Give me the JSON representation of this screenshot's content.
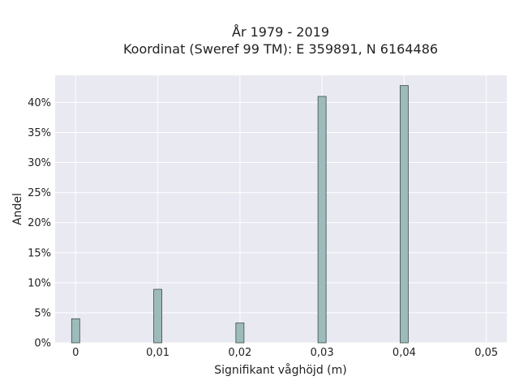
{
  "chart_data": {
    "type": "bar",
    "title_lines": [
      "År 1979 - 2019",
      "Koordinat (Sweref 99 TM): E 359891, N 6164486"
    ],
    "xlabel": "Signifikant våghöjd (m)",
    "ylabel": "Andel",
    "x": [
      0,
      0.01,
      0.02,
      0.03,
      0.04
    ],
    "values": [
      4.0,
      8.9,
      3.3,
      41.0,
      42.8
    ],
    "xlim": [
      -0.0025,
      0.0525
    ],
    "ylim": [
      0,
      44.5
    ],
    "xticks": [
      0,
      0.01,
      0.02,
      0.03,
      0.04,
      0.05
    ],
    "xtick_labels": [
      "0",
      "0,01",
      "0,02",
      "0,03",
      "0,04",
      "0,05"
    ],
    "yticks": [
      0,
      5,
      10,
      15,
      20,
      25,
      30,
      35,
      40
    ],
    "ytick_labels": [
      "0%",
      "5%",
      "10%",
      "15%",
      "20%",
      "25%",
      "30%",
      "35%",
      "40%"
    ],
    "grid": true,
    "colors": {
      "bar": "#9dbbbb",
      "bar_edge": "#3d4a4a",
      "background": "#e9e9f2"
    }
  }
}
